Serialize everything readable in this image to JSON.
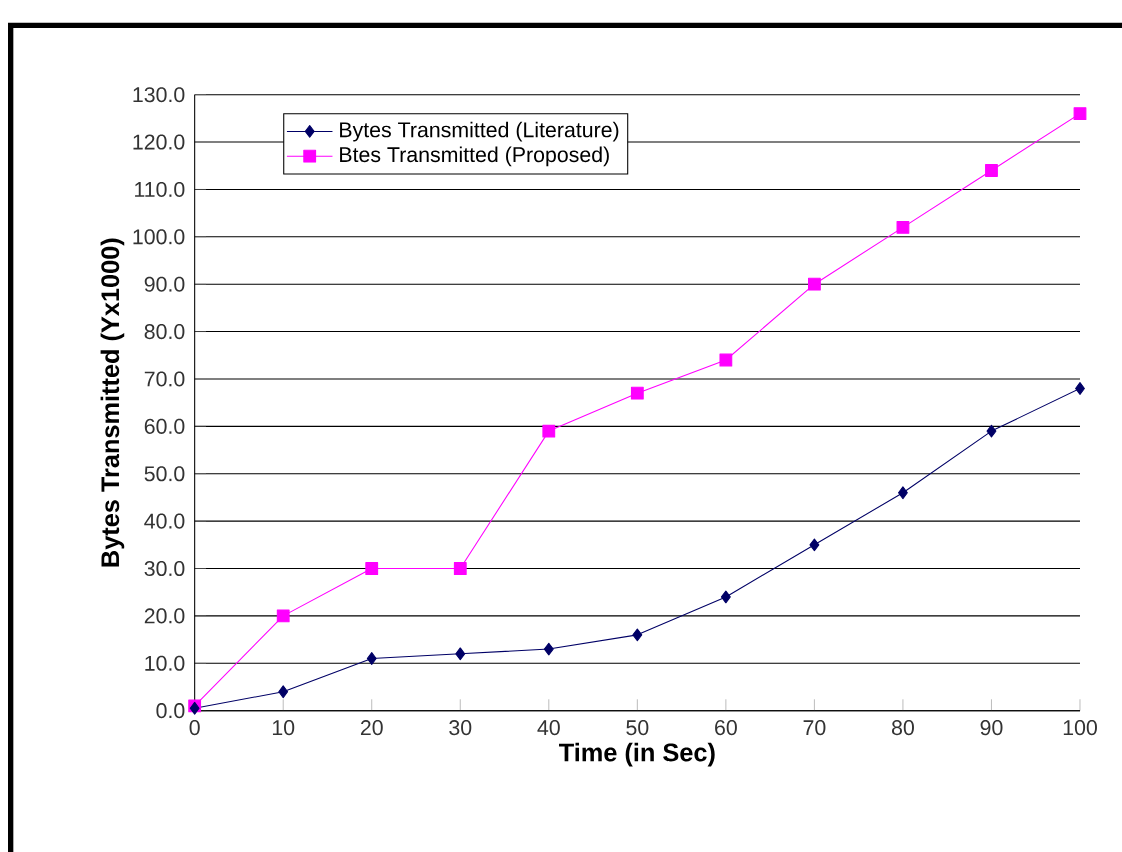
{
  "chart_data": {
    "type": "line",
    "xlabel": "Time (in Sec)",
    "ylabel": "Bytes Transmitted (Yx1000)",
    "x": [
      0,
      10,
      20,
      30,
      40,
      50,
      60,
      70,
      80,
      90,
      100
    ],
    "series": [
      {
        "name": "Bytes Transmitted (Literature)",
        "color": "#000066",
        "marker": "diamond",
        "values": [
          0.5,
          4,
          11,
          12,
          13,
          16,
          24,
          35,
          46,
          59,
          68
        ]
      },
      {
        "name": "Btes Transmitted (Proposed)",
        "color": "#ff00ff",
        "marker": "square",
        "values": [
          1,
          20,
          30,
          30,
          59,
          67,
          74,
          90,
          102,
          114,
          126
        ]
      }
    ],
    "xlim": [
      0,
      100
    ],
    "xticks": [
      0,
      10,
      20,
      30,
      40,
      50,
      60,
      70,
      80,
      90,
      100
    ],
    "ylim": [
      0,
      130
    ],
    "yticks": [
      {
        "value": 0,
        "label": "0.0"
      },
      {
        "value": 10,
        "label": "10.0"
      },
      {
        "value": 20,
        "label": "20.0"
      },
      {
        "value": 30,
        "label": "30.0"
      },
      {
        "value": 40,
        "label": "40.0"
      },
      {
        "value": 50,
        "label": "50.0"
      },
      {
        "value": 60,
        "label": "60.0"
      },
      {
        "value": 70,
        "label": "70.0"
      },
      {
        "value": 80,
        "label": "80.0"
      },
      {
        "value": 90,
        "label": "90.0"
      },
      {
        "value": 100,
        "label": "100.0"
      },
      {
        "value": 110,
        "label": "110.0"
      },
      {
        "value": 120,
        "label": "120.0"
      },
      {
        "value": 130,
        "label": "130.0"
      }
    ],
    "grid": "y",
    "legend": "top left",
    "line_style": "solid"
  }
}
